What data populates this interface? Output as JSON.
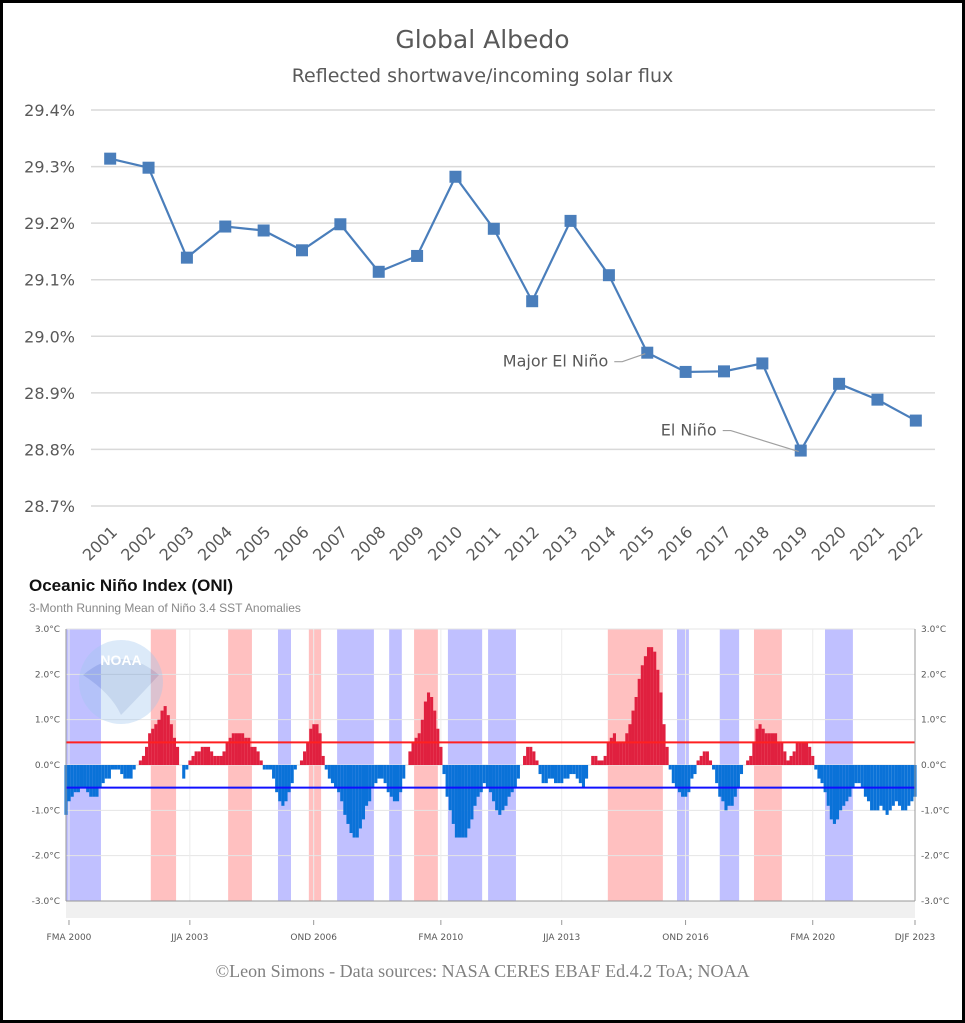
{
  "chart_data": [
    {
      "type": "line",
      "title": "Global Albedo",
      "subtitle": "Reflected shortwave/incoming solar flux",
      "xlabel": "",
      "ylabel": "",
      "ylim": [
        28.7,
        29.4
      ],
      "yticks": [
        "29.4%",
        "29.3%",
        "29.2%",
        "29.1%",
        "29.0%",
        "28.9%",
        "28.8%",
        "28.7%"
      ],
      "ytick_values": [
        29.4,
        29.3,
        29.2,
        29.1,
        29.0,
        28.9,
        28.8,
        28.7
      ],
      "grid": true,
      "marker": "square",
      "color": "#4a7ebb",
      "categories": [
        "2001",
        "2002",
        "2003",
        "2004",
        "2005",
        "2006",
        "2007",
        "2008",
        "2009",
        "2010",
        "2011",
        "2012",
        "2013",
        "2014",
        "2015",
        "2016",
        "2017",
        "2018",
        "2019",
        "2020",
        "2021",
        "2022"
      ],
      "values": [
        29.314,
        29.298,
        29.139,
        29.194,
        29.187,
        29.152,
        29.198,
        29.114,
        29.142,
        29.282,
        29.19,
        29.062,
        29.204,
        29.108,
        28.971,
        28.937,
        28.938,
        28.952,
        28.798,
        28.916,
        28.888,
        28.851
      ],
      "annotations": [
        {
          "text": "Major El Niño",
          "category": "2015"
        },
        {
          "text": "El Niño",
          "category": "2019"
        }
      ]
    },
    {
      "type": "bar",
      "title": "Oceanic Niño Index (ONI)",
      "subtitle": "3-Month Running Mean of Niño 3.4 SST Anomalies",
      "ylim": [
        -3,
        3
      ],
      "yticks": [
        "3.0°C",
        "2.0°C",
        "1.0°C",
        "0.0°C",
        "-1.0°C",
        "-2.0°C",
        "-3.0°C"
      ],
      "ytick_values": [
        3,
        2,
        1,
        0,
        -1,
        -2,
        -3
      ],
      "xticks": [
        "FMA 2000",
        "JJA 2003",
        "OND 2006",
        "FMA 2010",
        "JJA 2013",
        "OND 2016",
        "FMA 2020",
        "DJF 2023"
      ],
      "xtick_years": [
        2000.25,
        2003.5,
        2006.83,
        2010.25,
        2013.5,
        2016.83,
        2020.25,
        2023.0
      ],
      "first_season": "FMA 2000",
      "thresholds": [
        {
          "value": 0.5,
          "color": "#ff2020"
        },
        {
          "value": -0.5,
          "color": "#1010ff"
        }
      ],
      "colors": {
        "positive": "#e0203f",
        "negative": "#0a72d8",
        "el_nino_band": "#ffc0c0",
        "la_nina_band": "#c0c0ff"
      },
      "watermark": "NOAA",
      "values": [
        -1.1,
        -0.8,
        -0.7,
        -0.6,
        -0.6,
        -0.5,
        -0.5,
        -0.6,
        -0.7,
        -0.7,
        -0.7,
        -0.5,
        -0.4,
        -0.3,
        -0.3,
        -0.1,
        -0.1,
        -0.1,
        -0.2,
        -0.3,
        -0.3,
        -0.3,
        -0.1,
        0.0,
        0.1,
        0.2,
        0.4,
        0.7,
        0.8,
        0.9,
        1.0,
        1.2,
        1.3,
        1.1,
        0.9,
        0.6,
        0.4,
        0.0,
        -0.3,
        -0.1,
        0.1,
        0.2,
        0.3,
        0.3,
        0.4,
        0.4,
        0.4,
        0.3,
        0.2,
        0.2,
        0.2,
        0.3,
        0.5,
        0.6,
        0.7,
        0.7,
        0.7,
        0.7,
        0.6,
        0.6,
        0.4,
        0.4,
        0.3,
        0.1,
        -0.1,
        -0.1,
        -0.1,
        -0.3,
        -0.6,
        -0.8,
        -0.9,
        -0.8,
        -0.6,
        -0.4,
        -0.1,
        0.0,
        0.1,
        0.3,
        0.5,
        0.8,
        0.9,
        0.9,
        0.7,
        0.2,
        -0.1,
        -0.3,
        -0.4,
        -0.5,
        -0.6,
        -0.8,
        -1.1,
        -1.3,
        -1.5,
        -1.6,
        -1.6,
        -1.4,
        -1.2,
        -0.9,
        -0.8,
        -0.5,
        -0.4,
        -0.3,
        -0.3,
        -0.4,
        -0.6,
        -0.7,
        -0.8,
        -0.8,
        -0.6,
        -0.3,
        0.0,
        0.3,
        0.5,
        0.6,
        0.7,
        1.0,
        1.4,
        1.6,
        1.5,
        1.2,
        0.8,
        0.4,
        -0.2,
        -0.7,
        -1.0,
        -1.3,
        -1.6,
        -1.6,
        -1.6,
        -1.6,
        -1.4,
        -1.2,
        -0.9,
        -0.7,
        -0.6,
        -0.4,
        -0.5,
        -0.6,
        -0.8,
        -1.0,
        -1.1,
        -1.0,
        -0.9,
        -0.7,
        -0.6,
        -0.5,
        -0.3,
        0.0,
        0.2,
        0.4,
        0.4,
        0.3,
        0.1,
        -0.2,
        -0.4,
        -0.4,
        -0.3,
        -0.3,
        -0.4,
        -0.4,
        -0.4,
        -0.3,
        -0.3,
        -0.2,
        -0.2,
        -0.3,
        -0.4,
        -0.5,
        -0.3,
        0.0,
        0.2,
        0.2,
        0.1,
        0.1,
        0.2,
        0.5,
        0.6,
        0.7,
        0.5,
        0.5,
        0.5,
        0.7,
        0.9,
        1.2,
        1.5,
        1.9,
        2.2,
        2.4,
        2.6,
        2.6,
        2.5,
        2.1,
        1.6,
        0.9,
        0.4,
        -0.1,
        -0.4,
        -0.5,
        -0.6,
        -0.7,
        -0.7,
        -0.6,
        -0.3,
        -0.2,
        0.1,
        0.2,
        0.3,
        0.3,
        0.1,
        -0.1,
        -0.4,
        -0.7,
        -0.8,
        -1.0,
        -0.9,
        -0.9,
        -0.7,
        -0.5,
        -0.2,
        0.0,
        0.1,
        0.2,
        0.5,
        0.8,
        0.9,
        0.8,
        0.7,
        0.7,
        0.7,
        0.7,
        0.5,
        0.5,
        0.3,
        0.1,
        0.2,
        0.3,
        0.5,
        0.5,
        0.5,
        0.5,
        0.4,
        0.2,
        -0.1,
        -0.3,
        -0.4,
        -0.6,
        -0.9,
        -1.2,
        -1.3,
        -1.2,
        -1.0,
        -0.9,
        -0.8,
        -0.7,
        -0.5,
        -0.4,
        -0.4,
        -0.5,
        -0.7,
        -0.8,
        -1.0,
        -1.0,
        -1.0,
        -0.9,
        -1.0,
        -1.1,
        -1.0,
        -0.9,
        -0.8,
        -0.9,
        -1.0,
        -1.0,
        -0.9,
        -0.8,
        -0.7
      ],
      "bands": [
        {
          "type": "la_nina",
          "start": 2000.17,
          "end": 2001.11
        },
        {
          "type": "el_nino",
          "start": 2002.45,
          "end": 2003.13
        },
        {
          "type": "el_nino",
          "start": 2004.53,
          "end": 2005.17
        },
        {
          "type": "la_nina",
          "start": 2005.87,
          "end": 2006.22
        },
        {
          "type": "el_nino",
          "start": 2006.7,
          "end": 2007.03
        },
        {
          "type": "la_nina",
          "start": 2007.46,
          "end": 2008.45
        },
        {
          "type": "la_nina",
          "start": 2008.86,
          "end": 2009.2
        },
        {
          "type": "el_nino",
          "start": 2009.53,
          "end": 2010.17
        },
        {
          "type": "la_nina",
          "start": 2010.44,
          "end": 2011.36
        },
        {
          "type": "la_nina",
          "start": 2011.52,
          "end": 2012.27
        },
        {
          "type": "el_nino",
          "start": 2014.74,
          "end": 2016.22
        },
        {
          "type": "la_nina",
          "start": 2016.6,
          "end": 2016.92
        },
        {
          "type": "la_nina",
          "start": 2017.75,
          "end": 2018.27
        },
        {
          "type": "el_nino",
          "start": 2018.67,
          "end": 2019.42
        },
        {
          "type": "la_nina",
          "start": 2020.58,
          "end": 2021.33
        }
      ]
    }
  ],
  "footer": "©Leon Simons -  Data sources: NASA CERES EBAF Ed.4.2 ToA; NOAA"
}
